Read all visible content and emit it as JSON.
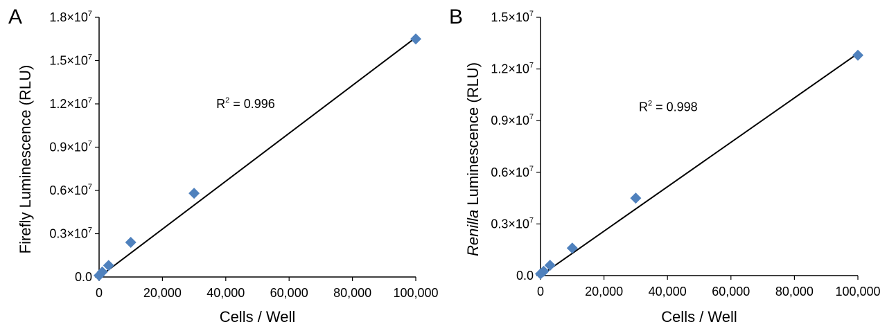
{
  "chart_data": [
    {
      "type": "scatter",
      "panel_label": "A",
      "xlabel": "Cells / Well",
      "ylabel_italic": "",
      "ylabel": "Firefly Luminescence (RLU)",
      "x_tick_labels": [
        "0",
        "20,000",
        "40,000",
        "60,000",
        "80,000",
        "100,000"
      ],
      "x_ticks": [
        0,
        20000,
        40000,
        60000,
        80000,
        100000
      ],
      "y_tick_labels": [
        {
          "base": "0.0",
          "exp": ""
        },
        {
          "base": "0.3×10",
          "exp": "7"
        },
        {
          "base": "0.6×10",
          "exp": "7"
        },
        {
          "base": "0.9×10",
          "exp": "7"
        },
        {
          "base": "1.2×10",
          "exp": "7"
        },
        {
          "base": "1.5×10",
          "exp": "7"
        },
        {
          "base": "1.8×10",
          "exp": "7"
        }
      ],
      "y_ticks": [
        0,
        3000000,
        6000000,
        9000000,
        12000000,
        15000000,
        18000000
      ],
      "xlim": [
        0,
        100000
      ],
      "ylim": [
        0,
        18000000
      ],
      "series": [
        {
          "x": [
            0,
            1000,
            3000,
            10000,
            30000,
            100000
          ],
          "y": [
            100000,
            350000,
            800000,
            2400000,
            5800000,
            16500000
          ],
          "color": "#4f81bd",
          "marker": "diamond"
        }
      ],
      "trendline": {
        "x": [
          0,
          100000
        ],
        "y": [
          0,
          16600000
        ],
        "color": "#000000"
      },
      "annotation": {
        "base": "R",
        "sup": "2",
        "rest": " = 0.996",
        "x": 37000,
        "y": 12000000
      },
      "grid": false
    },
    {
      "type": "scatter",
      "panel_label": "B",
      "xlabel": "Cells / Well",
      "ylabel_italic": "Renilla",
      "ylabel": " Luminescence (RLU)",
      "x_tick_labels": [
        "0",
        "20,000",
        "40,000",
        "60,000",
        "80,000",
        "100,000"
      ],
      "x_ticks": [
        0,
        20000,
        40000,
        60000,
        80000,
        100000
      ],
      "y_tick_labels": [
        {
          "base": "0.0",
          "exp": ""
        },
        {
          "base": "0.3×10",
          "exp": "7"
        },
        {
          "base": "0.6×10",
          "exp": "7"
        },
        {
          "base": "0.9×10",
          "exp": "7"
        },
        {
          "base": "1.2×10",
          "exp": "7"
        },
        {
          "base": "1.5×10",
          "exp": "7"
        }
      ],
      "y_ticks": [
        0,
        3000000,
        6000000,
        9000000,
        12000000,
        15000000
      ],
      "xlim": [
        0,
        100000
      ],
      "ylim": [
        0,
        15000000
      ],
      "series": [
        {
          "x": [
            0,
            1000,
            3000,
            10000,
            30000,
            100000
          ],
          "y": [
            100000,
            250000,
            600000,
            1600000,
            4500000,
            12800000
          ],
          "color": "#4f81bd",
          "marker": "diamond"
        }
      ],
      "trendline": {
        "x": [
          0,
          100000
        ],
        "y": [
          0,
          12900000
        ],
        "color": "#000000"
      },
      "annotation": {
        "base": "R",
        "sup": "2",
        "rest": " = 0.998",
        "x": 31000,
        "y": 9800000
      },
      "grid": false
    }
  ]
}
